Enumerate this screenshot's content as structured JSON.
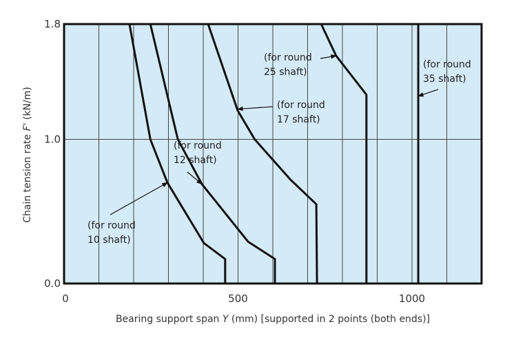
{
  "chart_data": {
    "type": "line",
    "title": "",
    "xlabel_parts": [
      "Bearing support span ",
      "Y",
      " (mm) [supported in 2 points (both ends)]"
    ],
    "ylabel_parts": [
      "Chain tension rate ",
      "F'",
      " (kN/m)"
    ],
    "xlim": [
      0,
      1200
    ],
    "ylim": [
      0,
      1.8
    ],
    "xticks": [
      {
        "v": 0,
        "label": "0"
      },
      {
        "v": 500,
        "label": "500"
      },
      {
        "v": 1000,
        "label": "1000"
      }
    ],
    "yticks": [
      {
        "v": 0,
        "label": "0.0"
      },
      {
        "v": 1.0,
        "label": "1.0"
      },
      {
        "v": 1.8,
        "label": "1.8"
      }
    ],
    "x_gridlines_every": 100,
    "y_gridlines": [
      1.0
    ],
    "background_color": "#d4eaf7",
    "line_color": "#111111",
    "series": [
      {
        "name": "(for round 10 shaft)",
        "label_lines": [
          "(for round",
          "10 shaft)"
        ],
        "points": [
          [
            188,
            1.8
          ],
          [
            248,
            1.0
          ],
          [
            297,
            0.7
          ],
          [
            402,
            0.28
          ],
          [
            463,
            0.17
          ],
          [
            463,
            0
          ]
        ]
      },
      {
        "name": "(for round 12 shaft)",
        "label_lines": [
          "(for round",
          "12 shaft)"
        ],
        "points": [
          [
            248,
            1.8
          ],
          [
            327,
            1.0
          ],
          [
            396,
            0.69
          ],
          [
            529,
            0.29
          ],
          [
            606,
            0.17
          ],
          [
            606,
            0
          ]
        ]
      },
      {
        "name": "(for round 17 shaft)",
        "label_lines": [
          "(for round",
          "17 shaft)"
        ],
        "points": [
          [
            414,
            1.8
          ],
          [
            499,
            1.2
          ],
          [
            548,
            1.0
          ],
          [
            651,
            0.72
          ],
          [
            725,
            0.55
          ],
          [
            727,
            0
          ]
        ]
      },
      {
        "name": "(for round 25 shaft)",
        "label_lines": [
          "(for round",
          "25 shaft)"
        ],
        "points": [
          [
            739,
            1.8
          ],
          [
            782,
            1.58
          ],
          [
            869,
            1.31
          ],
          [
            869,
            0
          ]
        ]
      },
      {
        "name": "(for round 35 shaft)",
        "label_lines": [
          "(for round",
          "35 shaft)"
        ],
        "points": [
          [
            1018,
            1.8
          ],
          [
            1018,
            0
          ]
        ]
      }
    ]
  }
}
